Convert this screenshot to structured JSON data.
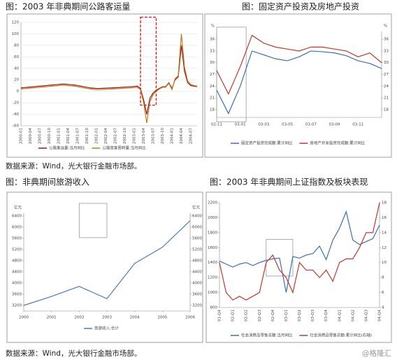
{
  "chart_data": [
    {
      "type": "line",
      "title": "图：2003 年非典期间公路客运量",
      "grid": true,
      "categories": [
        "2000-01",
        null,
        null,
        "2000-04",
        null,
        null,
        "2000-07",
        null,
        null,
        "2000-10",
        null,
        null,
        "2001-01",
        null,
        null,
        "2001-04",
        null,
        null,
        "2001-07",
        null,
        null,
        "2001-10",
        null,
        null,
        "2002-01",
        null,
        null,
        "2002-04",
        null,
        null,
        "2002-07",
        null,
        null,
        "2002-10",
        null,
        null,
        "2003-01",
        null,
        null,
        "2003-04",
        null,
        null,
        "2003-07",
        null,
        null,
        "2003-10",
        null,
        null,
        "2004-01",
        null,
        null,
        "2004-04",
        null,
        null,
        "2004-07",
        null,
        null
      ],
      "ylim": [
        -60,
        120
      ],
      "yticks": [
        -60,
        -40,
        -20,
        0,
        20,
        40,
        60,
        80,
        100,
        120
      ],
      "series": [
        {
          "name": "公路客运量:当月同比",
          "color": "#8b1a1a",
          "values": [
            6,
            6.5,
            7,
            7.5,
            8,
            8.5,
            9,
            9.5,
            10,
            10.5,
            11,
            11.5,
            12,
            12.5,
            12.5,
            12,
            11.5,
            11,
            10,
            9,
            8,
            7,
            6,
            5.5,
            5,
            5,
            5.2,
            5.5,
            5.8,
            6,
            6.3,
            6.6,
            7,
            7.3,
            7.6,
            8,
            8.5,
            9,
            5,
            -15,
            -40,
            -12,
            -3,
            2,
            5,
            8,
            8,
            15,
            5,
            20,
            25,
            80,
            35,
            15,
            10,
            9,
            8
          ]
        },
        {
          "name": "公路旅客周转量:当月同比",
          "color": "#c8781e",
          "values": [
            4,
            4.5,
            5,
            5.5,
            6,
            6.5,
            7,
            7.5,
            8,
            8.5,
            9,
            9.5,
            10,
            10.5,
            10.5,
            10,
            9.5,
            9,
            8,
            7,
            6,
            5,
            4,
            3.5,
            3,
            3,
            3.2,
            3.5,
            3.8,
            4,
            4.3,
            4.6,
            5,
            5.3,
            5.6,
            6,
            6.5,
            7,
            3,
            -20,
            -55,
            -18,
            -6,
            0,
            4,
            7,
            7,
            14,
            3,
            22,
            27,
            100,
            42,
            18,
            12,
            10,
            9
          ]
        }
      ]
    },
    {
      "type": "line",
      "title": "图：固定资产投资及房地产投资",
      "grid": false,
      "y_unit": "%",
      "y2_unit": "%",
      "categories": [
        "02-11",
        null,
        "03-01",
        null,
        "03-03",
        null,
        "03-05",
        null,
        "03-07",
        null,
        "03-09",
        null,
        "03-11",
        null,
        null
      ],
      "ylim": [
        16,
        38
      ],
      "yticks": [
        18,
        21,
        24,
        27,
        30,
        33,
        36
      ],
      "y2lim": [
        16,
        38
      ],
      "y2ticks": [
        18,
        21,
        24,
        27,
        30,
        33,
        36
      ],
      "series": [
        {
          "name": "固定资产投资完成额:累计同比",
          "color": "#3a6fb0",
          "values": [
            23,
            17,
            24,
            33,
            32,
            31,
            30.5,
            31.5,
            33,
            32.8,
            32.5,
            31.8,
            30.5,
            29.8,
            28.5
          ]
        },
        {
          "name": "房地产开发投资完成额:累计同比",
          "color": "#c0392b",
          "values": [
            28,
            22,
            29,
            37,
            35,
            34,
            33.5,
            33,
            34,
            34,
            33.5,
            33,
            31.5,
            32.5,
            30
          ]
        }
      ]
    },
    {
      "type": "line",
      "title": "图：非典期间旅游收入",
      "grid": false,
      "y_unit": "亿元",
      "y2_unit": "亿元",
      "x": [
        2000,
        2001,
        2002,
        2003,
        2004,
        2005,
        2006
      ],
      "xlim": [
        2000,
        2006
      ],
      "xticks": [
        2000,
        2001,
        2002,
        2003,
        2004,
        2005,
        2006
      ],
      "ylim": [
        3000,
        6500
      ],
      "yticks": [
        3200,
        3600,
        4000,
        4400,
        4800,
        5200,
        5600,
        6000,
        6400
      ],
      "y2lim": [
        3000,
        6500
      ],
      "y2ticks": [
        3200,
        3600,
        4000,
        4400,
        4800,
        5200,
        5600,
        6000,
        6400
      ],
      "series": [
        {
          "name": "旅游收入:合计",
          "color": "#4a7ebb",
          "values": [
            3200,
            3520,
            3880,
            3440,
            4700,
            5280,
            6230
          ]
        }
      ]
    },
    {
      "type": "line",
      "title": "图：2003 年非典期间上证指数及板块表现",
      "grid": false,
      "categories": [
        "01-Q4",
        null,
        "02-Q1",
        null,
        "02-Q2",
        null,
        "02-Q3",
        null,
        "02-Q4",
        null,
        "03-Q1",
        null,
        "03-Q2",
        null,
        "03-Q3",
        null,
        "03-Q4",
        null,
        "04-Q1",
        null,
        "04-Q2",
        null,
        "04-Q3",
        null,
        "04-Q4"
      ],
      "ylim": [
        800,
        2200
      ],
      "yticks": [
        800,
        1000,
        1200,
        1400,
        1600,
        1800,
        2000,
        2200
      ],
      "y2lim": [
        4,
        18
      ],
      "y2ticks": [
        4,
        6,
        8,
        10,
        12,
        14,
        16,
        18
      ],
      "series": [
        {
          "name": "社会消费品零售总额:当月同比",
          "color": "#3a6fb0",
          "values": [
            1420,
            1380,
            1340,
            1380,
            1400,
            1360,
            1400,
            1430,
            1450,
            1460,
            1000,
            1480,
            1460,
            1500,
            1520,
            1620,
            1440,
            1700,
            1860,
            2080,
            1700,
            1640,
            1680,
            1720,
            1900
          ]
        },
        {
          "name": "社会消费品零售总额:累计同比(右轴)",
          "color": "#c0392b",
          "axis": "y2",
          "values": [
            10,
            6,
            5,
            5.5,
            5,
            5.5,
            6,
            10,
            11,
            9,
            8,
            6,
            10,
            9,
            9,
            8,
            9,
            7.5,
            10,
            10.5,
            10.5,
            12,
            14,
            14,
            18
          ]
        }
      ]
    }
  ],
  "sources": [
    "数据来源：Wind，光大银行金融市场部。",
    "数据来源：Wind，光大银行金融市场部。"
  ],
  "watermark": "@格隆汇"
}
